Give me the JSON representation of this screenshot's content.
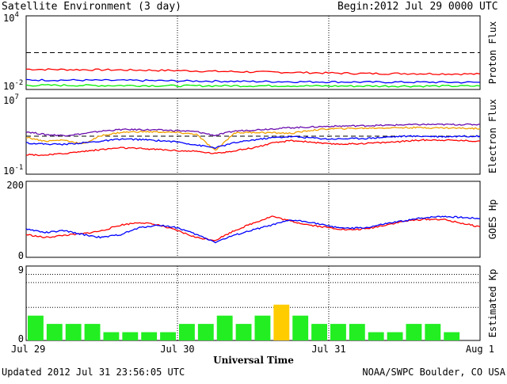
{
  "header": {
    "title": "Satellite Environment (3 day)",
    "begin_label": "Begin:",
    "begin_value": "2012 Jul 29 0000 UTC"
  },
  "footer": {
    "updated": "Updated 2012 Jul 31 23:56:05 UTC",
    "credit": "NOAA/SWPC Boulder, CO USA"
  },
  "colors": {
    "red": "#ff0000",
    "blue": "#0000ff",
    "green": "#00ee00",
    "purple": "#6a0dad",
    "orange": "#f0a000",
    "kp_green": "#22ee22",
    "kp_yellow": "#ffcc00"
  },
  "chart_data": [
    {
      "type": "line",
      "ylabel": "Proton Flux",
      "y_scale": "log",
      "ytick_labels": [
        {
          "base": "10",
          "exp": "4"
        },
        {
          "base": "10",
          "exp": "-2"
        }
      ],
      "ylim": [
        0.01,
        10000
      ],
      "threshold": 10,
      "x": [
        0,
        6,
        12,
        18,
        24,
        30,
        36,
        42,
        48,
        54,
        60,
        66,
        72
      ],
      "series": [
        {
          "color": "red",
          "values": [
            0.45,
            0.42,
            0.4,
            0.38,
            0.35,
            0.3,
            0.27,
            0.25,
            0.22,
            0.2,
            0.2,
            0.19,
            0.18
          ]
        },
        {
          "color": "blue",
          "values": [
            0.06,
            0.058,
            0.056,
            0.054,
            0.05,
            0.048,
            0.045,
            0.043,
            0.042,
            0.04,
            0.04,
            0.039,
            0.038
          ]
        },
        {
          "color": "green",
          "values": [
            0.022,
            0.022,
            0.021,
            0.021,
            0.02,
            0.02,
            0.02,
            0.02,
            0.019,
            0.019,
            0.019,
            0.019,
            0.019
          ]
        }
      ]
    },
    {
      "type": "line",
      "ylabel": "Electron Flux",
      "y_scale": "log",
      "ytick_labels": [
        {
          "base": "10",
          "exp": "7"
        },
        {
          "base": "10",
          "exp": "-1"
        }
      ],
      "ylim": [
        0.1,
        10000000
      ],
      "threshold": 1000,
      "x": [
        0,
        3,
        6,
        9,
        12,
        15,
        18,
        21,
        24,
        27,
        30,
        33,
        36,
        39,
        42,
        45,
        48,
        51,
        54,
        57,
        60,
        63,
        66,
        69,
        72
      ],
      "series": [
        {
          "color": "purple",
          "values": [
            3000,
            1500,
            1200,
            1800,
            3500,
            5000,
            5000,
            4500,
            3800,
            3000,
            1200,
            3500,
            4500,
            6000,
            8000,
            9000,
            11000,
            12000,
            13000,
            14000,
            16000,
            17000,
            17000,
            17000,
            17000
          ]
        },
        {
          "color": "orange",
          "values": [
            800,
            300,
            400,
            150,
            1200,
            2500,
            3000,
            2800,
            2400,
            1600,
            30,
            2200,
            2600,
            2300,
            2000,
            4000,
            6000,
            6500,
            7000,
            7500,
            8000,
            8000,
            7500,
            7000,
            6500
          ]
        },
        {
          "color": "blue",
          "values": [
            200,
            150,
            140,
            200,
            300,
            500,
            450,
            350,
            250,
            120,
            60,
            200,
            400,
            700,
            900,
            700,
            500,
            550,
            600,
            800,
            1000,
            1000,
            900,
            1000,
            1000
          ]
        },
        {
          "color": "red",
          "values": [
            12,
            10,
            15,
            25,
            40,
            60,
            50,
            40,
            30,
            25,
            15,
            30,
            60,
            180,
            350,
            250,
            150,
            150,
            180,
            220,
            300,
            400,
            400,
            350,
            300
          ]
        }
      ]
    },
    {
      "type": "line",
      "ylabel": "GOES Hp",
      "yticks": [
        0,
        200
      ],
      "ylim": [
        0,
        200
      ],
      "x": [
        0,
        3,
        6,
        9,
        12,
        15,
        18,
        21,
        24,
        27,
        30,
        33,
        36,
        39,
        42,
        45,
        48,
        51,
        54,
        57,
        60,
        63,
        66,
        69,
        72
      ],
      "series": [
        {
          "color": "red",
          "values": [
            60,
            52,
            58,
            62,
            70,
            85,
            92,
            85,
            70,
            52,
            45,
            70,
            90,
            108,
            95,
            85,
            78,
            72,
            75,
            85,
            95,
            100,
            100,
            90,
            80
          ]
        },
        {
          "color": "blue",
          "values": [
            75,
            65,
            70,
            60,
            52,
            60,
            78,
            85,
            78,
            60,
            40,
            58,
            72,
            85,
            98,
            93,
            82,
            76,
            78,
            88,
            96,
            104,
            108,
            105,
            102
          ]
        }
      ]
    },
    {
      "type": "bar",
      "ylabel": "Estimated Kp",
      "yticks": [
        0,
        9
      ],
      "ylim": [
        0,
        9
      ],
      "dashed_levels": [
        4,
        7,
        8
      ],
      "values": [
        3,
        2,
        2,
        2,
        1,
        1,
        1,
        1,
        2,
        2,
        3,
        2,
        3,
        4.33,
        3,
        2,
        2,
        2,
        1,
        1,
        2,
        2,
        1
      ],
      "colors": [
        "kp_green",
        "kp_green",
        "kp_green",
        "kp_green",
        "kp_green",
        "kp_green",
        "kp_green",
        "kp_green",
        "kp_green",
        "kp_green",
        "kp_green",
        "kp_green",
        "kp_green",
        "kp_yellow",
        "kp_green",
        "kp_green",
        "kp_green",
        "kp_green",
        "kp_green",
        "kp_green",
        "kp_green",
        "kp_green",
        "kp_green"
      ]
    }
  ],
  "xaxis": {
    "range_hours": [
      0,
      72
    ],
    "tick_labels": [
      {
        "hour": 0,
        "label": "Jul 29"
      },
      {
        "hour": 24,
        "label": "Jul 30"
      },
      {
        "hour": 48,
        "label": "Jul 31"
      },
      {
        "hour": 72,
        "label": "Aug 1"
      }
    ],
    "xlabel": "Universal Time"
  }
}
